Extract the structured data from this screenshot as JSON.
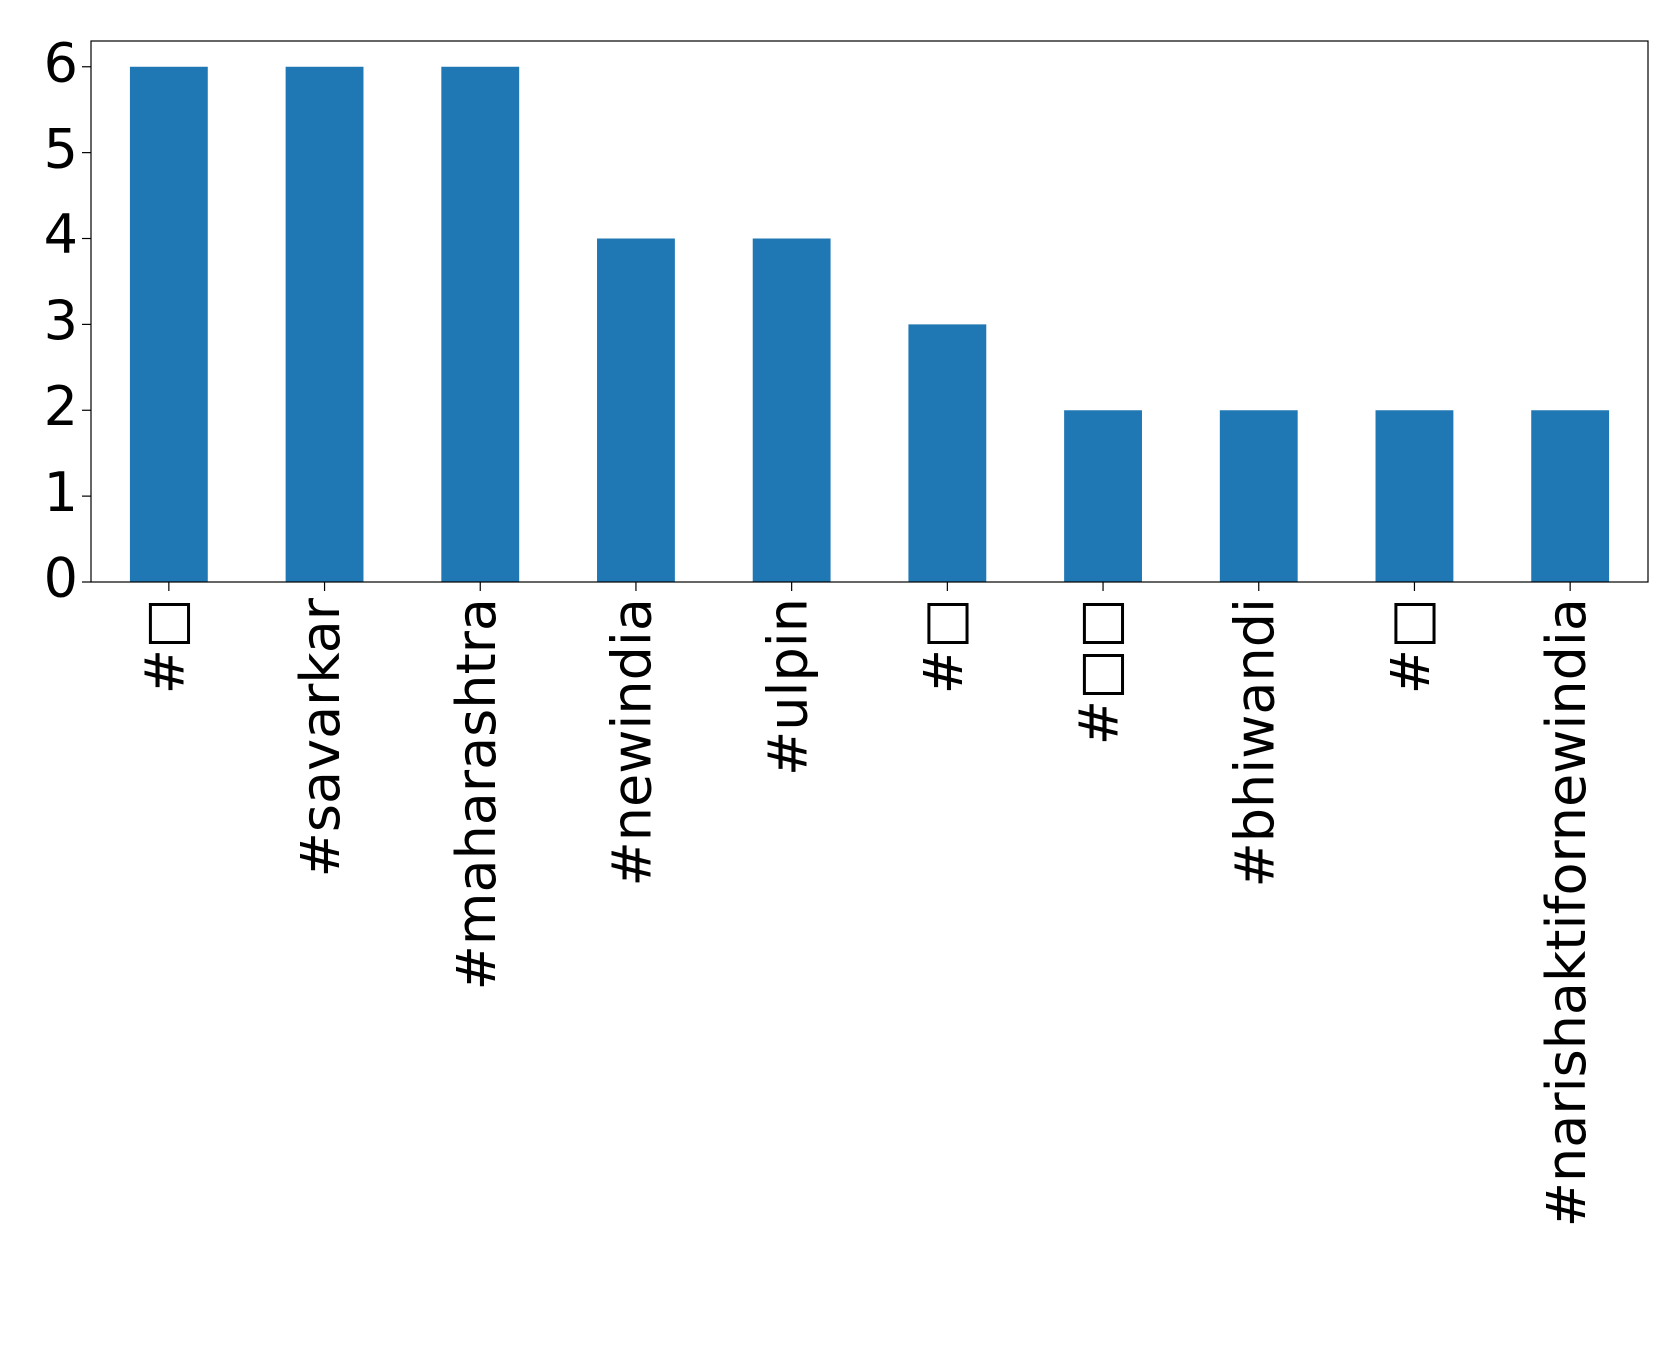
{
  "chart_data": {
    "type": "bar",
    "categories": [
      "#□",
      "#savarkar",
      "#maharashtra",
      "#newindia",
      "#ulpin",
      "#□",
      "#□□",
      "#bhiwandi",
      "#□",
      "#narishaktifornewindia"
    ],
    "values": [
      6,
      6,
      6,
      4,
      4,
      3,
      2,
      2,
      2,
      2
    ],
    "color": "#1f77b4",
    "ylim": [
      0,
      6.3
    ],
    "yticks": [
      0,
      1,
      2,
      3,
      4,
      5,
      6
    ],
    "grid": false
  }
}
